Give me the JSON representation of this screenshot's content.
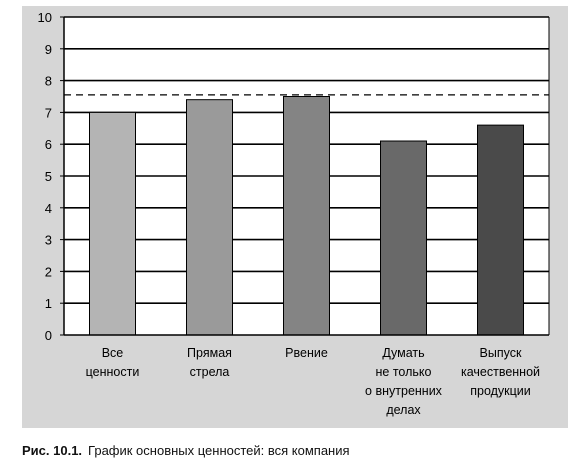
{
  "chart_data": {
    "type": "bar",
    "categories": [
      [
        "Все",
        "ценности"
      ],
      [
        "Прямая",
        "стрела"
      ],
      [
        "Рвение"
      ],
      [
        "Думать",
        "не только",
        "о внутренних",
        "делах"
      ],
      [
        "Выпуск",
        "качественной",
        "продукции"
      ]
    ],
    "values": [
      7.0,
      7.4,
      7.5,
      6.1,
      6.6
    ],
    "bar_colors": [
      "#b4b4b4",
      "#9a9a9a",
      "#848484",
      "#696969",
      "#4a4a4a"
    ],
    "reference_line": 7.55,
    "ylim": [
      0,
      10
    ],
    "yticks": [
      "0",
      "1",
      "2",
      "3",
      "4",
      "5",
      "6",
      "7",
      "8",
      "9",
      "10"
    ],
    "grid": true,
    "title": "",
    "xlabel": "",
    "ylabel": ""
  },
  "caption": {
    "number": "Рис. 10.1.",
    "text": "График основных ценностей: вся компания"
  }
}
